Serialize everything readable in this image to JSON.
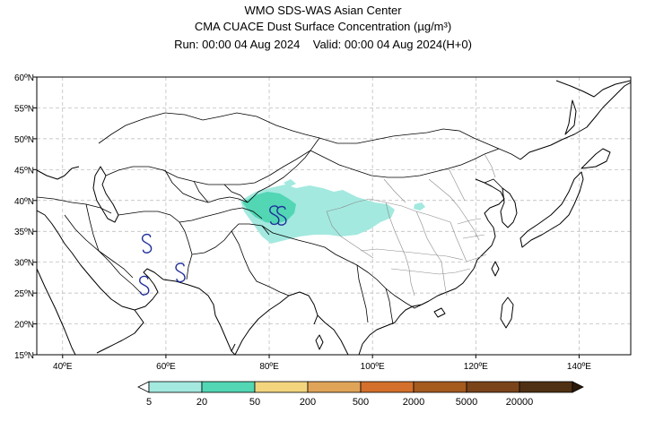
{
  "title": {
    "line1": "WMO SDS-WAS Asian Center",
    "line2": "CMA CUACE Dust Surface Concentration (µg/m³)",
    "line3": "Run: 00:00 04 Aug 2024    Valid: 00:00 04 Aug 2024(H+0)"
  },
  "map": {
    "lon_range": [
      35,
      150
    ],
    "lat_range": [
      15,
      60
    ],
    "lon_ticks": [
      "40ºE",
      "60ºE",
      "80ºE",
      "100ºE",
      "120ºE",
      "140ºE"
    ],
    "lat_ticks": [
      "15ºN",
      "20ºN",
      "25ºN",
      "30ºN",
      "35ºN",
      "40ºN",
      "45ºN",
      "50ºN",
      "55ºN",
      "60ºN"
    ],
    "grid": true,
    "dust_symbols": [
      {
        "lon": 81.0,
        "lat": 37.4
      },
      {
        "lon": 82.4,
        "lat": 37.3
      },
      {
        "lon": 56.3,
        "lat": 32.8
      },
      {
        "lon": 62.8,
        "lat": 28.1
      },
      {
        "lon": 55.8,
        "lat": 26.0
      }
    ]
  },
  "colorbar": {
    "colors": [
      "#ffffff",
      "#a3e9df",
      "#52d6b4",
      "#f3d57e",
      "#e0a458",
      "#d4702b",
      "#a55a1e",
      "#7a431a",
      "#503013",
      "#2b1a0a"
    ],
    "labels": [
      "5",
      "20",
      "50",
      "200",
      "500",
      "2000",
      "5000",
      "20000"
    ]
  }
}
